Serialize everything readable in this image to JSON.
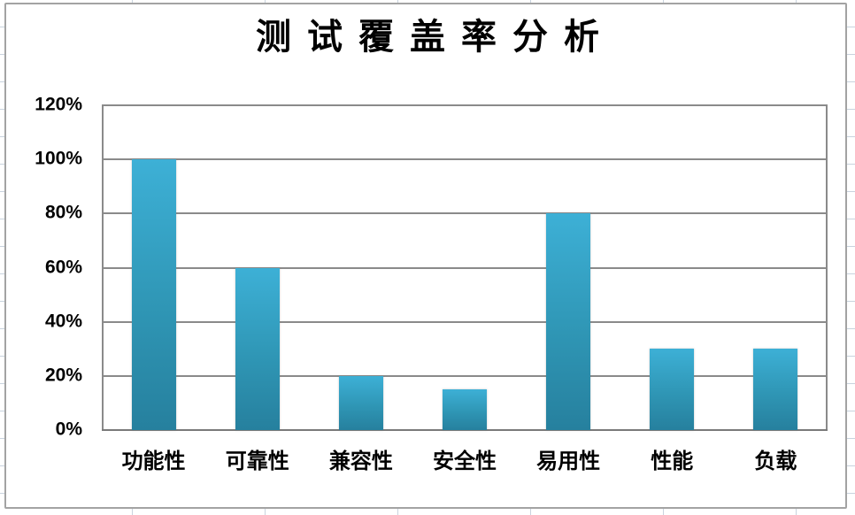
{
  "chart_data": {
    "type": "bar",
    "title": "测试覆盖率分析",
    "categories": [
      "功能性",
      "可靠性",
      "兼容性",
      "安全性",
      "易用性",
      "性能",
      "负载"
    ],
    "values": [
      100,
      60,
      20,
      15,
      80,
      30,
      30
    ],
    "value_unit": "%",
    "xlabel": "",
    "ylabel": "",
    "ylim": [
      0,
      120
    ],
    "ytick_step": 20,
    "ytick_labels": [
      "0%",
      "20%",
      "40%",
      "60%",
      "80%",
      "100%",
      "120%"
    ],
    "grid": true,
    "legend": "none",
    "colors": {
      "bar_top": "#3db0d6",
      "bar_mid": "#2f96b5",
      "bar_bottom": "#26809e",
      "gridline": "#8a8a8a",
      "axis_line": "#7a7a7a",
      "chart_border": "#a3a3a3",
      "sheet_gridline": "#c9d3de",
      "text": "#000000",
      "chart_background": "#ffffff"
    }
  }
}
